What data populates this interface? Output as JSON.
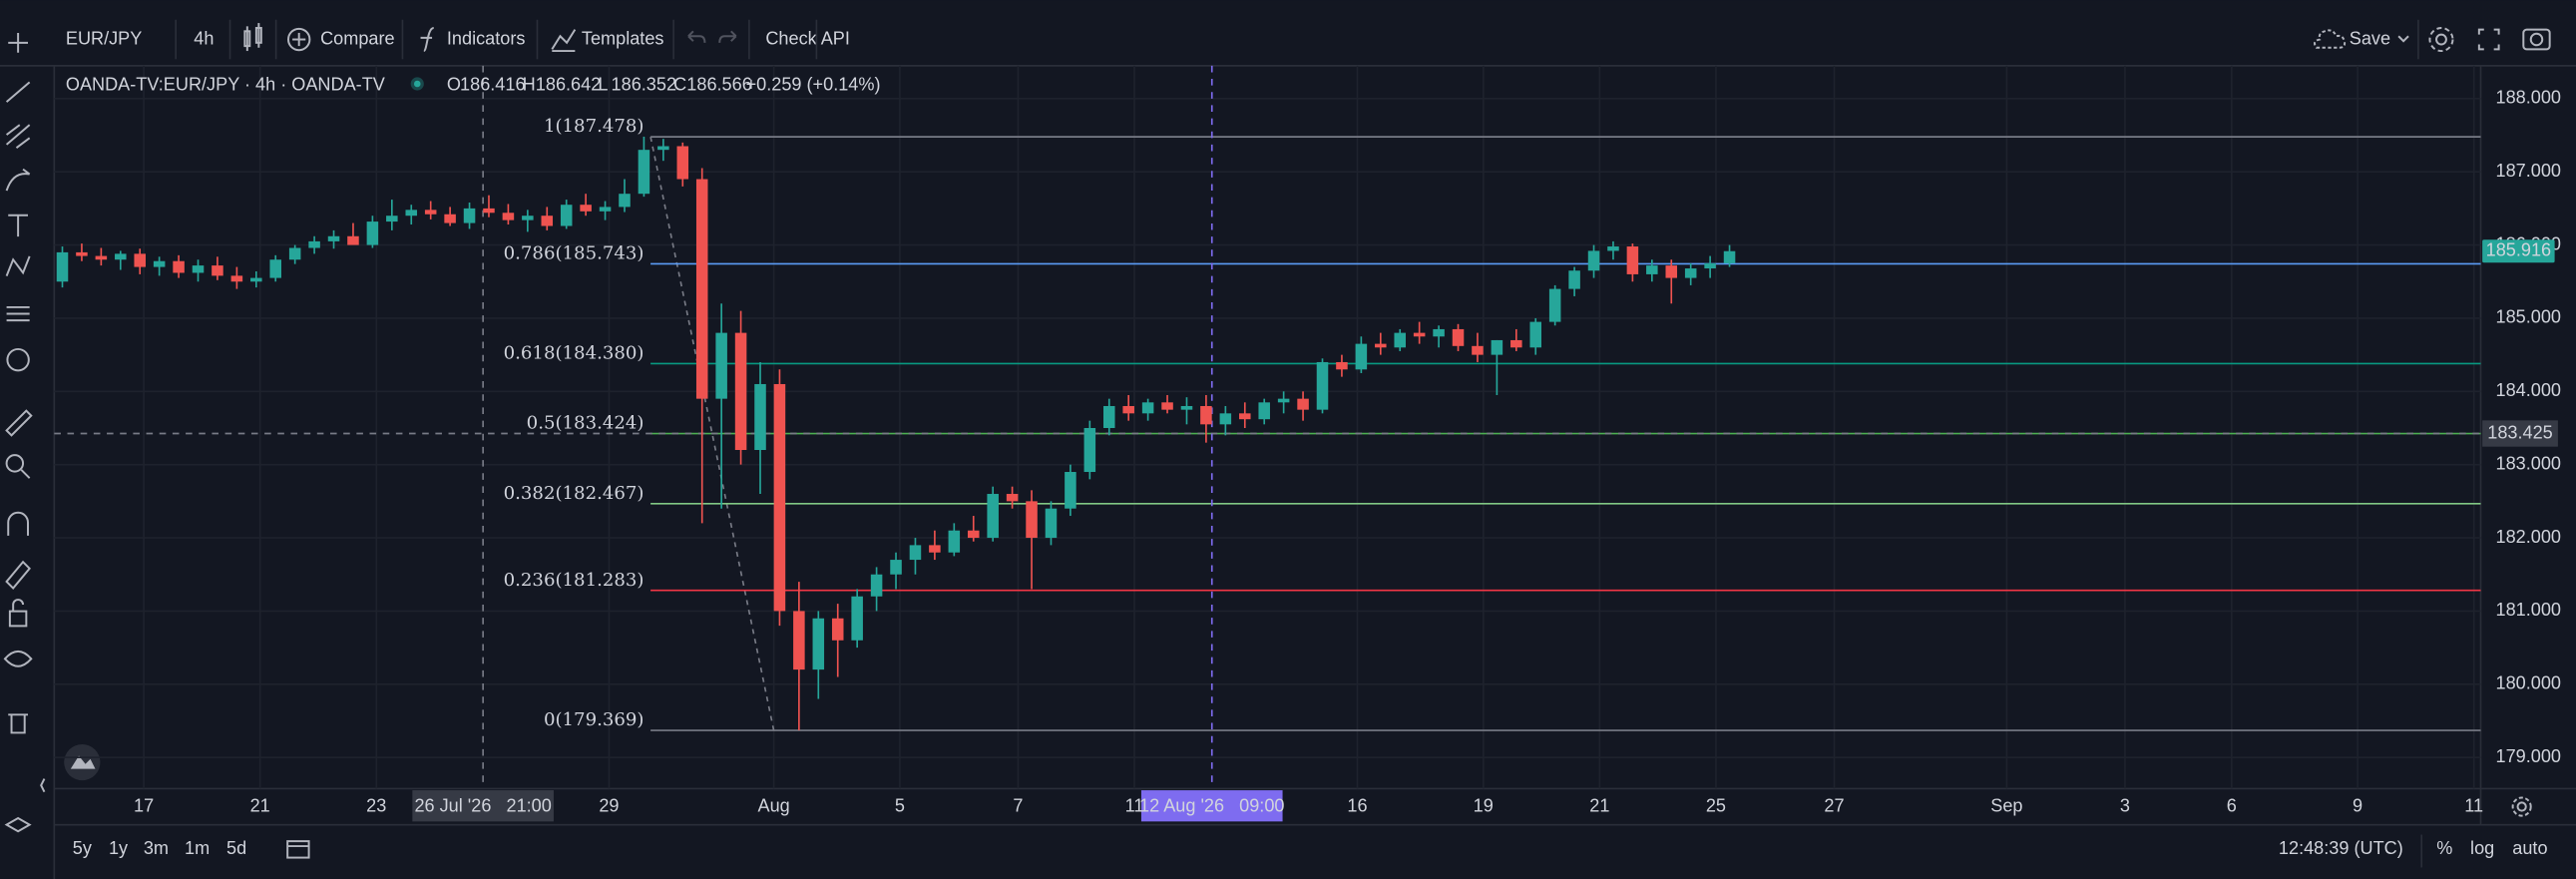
{
  "toolbar": {
    "symbol": "EUR/JPY",
    "interval": "4h",
    "compare": "Compare",
    "indicators": "Indicators",
    "templates": "Templates",
    "check_api": "Check API",
    "save": "Save"
  },
  "legend": {
    "title": "OANDA-TV:EUR/JPY · 4h · OANDA-TV",
    "ohlc": [
      {
        "label": "O",
        "value": 186.416
      },
      {
        "label": "H",
        "value": 186.642
      },
      {
        "label": "L",
        "value": 186.352
      },
      {
        "label": "C",
        "value": 186.566
      }
    ],
    "change": "+0.259 (+0.14%)"
  },
  "chart": {
    "type": "candlestick",
    "colors": {
      "up": "#26a69a",
      "down": "#ef5350"
    },
    "xlim": [
      -0.42,
      124.75
    ],
    "ylim": [
      178.574,
      188.449
    ],
    "yticks": [
      {
        "value": 179,
        "label": "179.000"
      },
      {
        "value": 180,
        "label": "180.000"
      },
      {
        "value": 181,
        "label": "181.000"
      },
      {
        "value": 182,
        "label": "182.000"
      },
      {
        "value": 183,
        "label": "183.000"
      },
      {
        "value": 184,
        "label": "184.000"
      },
      {
        "value": 185,
        "label": "185.000"
      },
      {
        "value": 186,
        "label": "186.000"
      },
      {
        "value": 187,
        "label": "187.000"
      },
      {
        "value": 188,
        "label": "188.000"
      }
    ],
    "xticks": [
      {
        "value": 4.2,
        "label": "17"
      },
      {
        "value": 10.2,
        "label": "21"
      },
      {
        "value": 16.2,
        "label": "23"
      },
      {
        "value": 28.2,
        "label": "29"
      },
      {
        "value": 36.7,
        "label": "Aug"
      },
      {
        "value": 43.2,
        "label": "5"
      },
      {
        "value": 49.3,
        "label": "7"
      },
      {
        "value": 55.3,
        "label": "11"
      },
      {
        "value": 66.8,
        "label": "16"
      },
      {
        "value": 73.3,
        "label": "19"
      },
      {
        "value": 79.3,
        "label": "21"
      },
      {
        "value": 85.3,
        "label": "25"
      },
      {
        "value": 91.4,
        "label": "27"
      },
      {
        "value": 100.3,
        "label": "Sep"
      },
      {
        "value": 106.4,
        "label": "3"
      },
      {
        "value": 111.9,
        "label": "6"
      },
      {
        "value": 118.4,
        "label": "9"
      },
      {
        "value": 124.4,
        "label": "11"
      }
    ],
    "candles": [
      [
        185.5,
        185.98,
        185.42,
        185.9
      ],
      [
        185.9,
        186.02,
        185.78,
        185.85
      ],
      [
        185.85,
        185.96,
        185.72,
        185.8
      ],
      [
        185.8,
        185.92,
        185.66,
        185.88
      ],
      [
        185.88,
        185.95,
        185.6,
        185.7
      ],
      [
        185.7,
        185.84,
        185.58,
        185.78
      ],
      [
        185.78,
        185.86,
        185.55,
        185.62
      ],
      [
        185.62,
        185.8,
        185.5,
        185.72
      ],
      [
        185.72,
        185.84,
        185.52,
        185.58
      ],
      [
        185.58,
        185.7,
        185.4,
        185.5
      ],
      [
        185.5,
        185.64,
        185.42,
        185.55
      ],
      [
        185.55,
        185.86,
        185.5,
        185.8
      ],
      [
        185.8,
        186.0,
        185.74,
        185.96
      ],
      [
        185.96,
        186.12,
        185.88,
        186.05
      ],
      [
        186.05,
        186.2,
        185.95,
        186.12
      ],
      [
        186.12,
        186.3,
        186.02,
        186.0
      ],
      [
        186.0,
        186.4,
        185.96,
        186.32
      ],
      [
        186.32,
        186.62,
        186.2,
        186.4
      ],
      [
        186.4,
        186.55,
        186.28,
        186.48
      ],
      [
        186.48,
        186.6,
        186.35,
        186.42
      ],
      [
        186.42,
        186.52,
        186.26,
        186.3
      ],
      [
        186.3,
        186.58,
        186.22,
        186.5
      ],
      [
        186.5,
        186.68,
        186.38,
        186.44
      ],
      [
        186.44,
        186.56,
        186.28,
        186.34
      ],
      [
        186.34,
        186.48,
        186.18,
        186.4
      ],
      [
        186.4,
        186.52,
        186.2,
        186.26
      ],
      [
        186.26,
        186.62,
        186.22,
        186.55
      ],
      [
        186.55,
        186.7,
        186.4,
        186.46
      ],
      [
        186.46,
        186.6,
        186.34,
        186.52
      ],
      [
        186.52,
        186.9,
        186.45,
        186.7
      ],
      [
        186.7,
        187.48,
        186.66,
        187.3
      ],
      [
        187.3,
        187.45,
        187.15,
        187.35
      ],
      [
        187.35,
        187.4,
        186.8,
        186.9
      ],
      [
        186.9,
        187.05,
        182.2,
        183.9
      ],
      [
        183.9,
        185.2,
        182.4,
        184.8
      ],
      [
        184.8,
        185.1,
        183.0,
        183.2
      ],
      [
        183.2,
        184.4,
        182.6,
        184.1
      ],
      [
        184.1,
        184.3,
        180.8,
        181.0
      ],
      [
        181.0,
        181.4,
        179.37,
        180.2
      ],
      [
        180.2,
        181.0,
        179.8,
        180.9
      ],
      [
        180.9,
        181.1,
        180.1,
        180.6
      ],
      [
        180.6,
        181.3,
        180.5,
        181.2
      ],
      [
        181.2,
        181.6,
        181.0,
        181.5
      ],
      [
        181.5,
        181.8,
        181.3,
        181.7
      ],
      [
        181.7,
        182.0,
        181.5,
        181.9
      ],
      [
        181.9,
        182.1,
        181.7,
        181.8
      ],
      [
        181.8,
        182.2,
        181.75,
        182.1
      ],
      [
        182.1,
        182.3,
        181.95,
        182.0
      ],
      [
        182.0,
        182.7,
        181.95,
        182.6
      ],
      [
        182.6,
        182.7,
        182.4,
        182.5
      ],
      [
        182.5,
        182.65,
        181.3,
        182.0
      ],
      [
        182.0,
        182.5,
        181.9,
        182.4
      ],
      [
        182.4,
        183.0,
        182.3,
        182.9
      ],
      [
        182.9,
        183.6,
        182.8,
        183.5
      ],
      [
        183.5,
        183.9,
        183.4,
        183.8
      ],
      [
        183.8,
        183.95,
        183.6,
        183.7
      ],
      [
        183.7,
        183.9,
        183.6,
        183.85
      ],
      [
        183.85,
        183.95,
        183.7,
        183.75
      ],
      [
        183.75,
        183.92,
        183.55,
        183.8
      ],
      [
        183.8,
        183.95,
        183.3,
        183.55
      ],
      [
        183.55,
        183.8,
        183.4,
        183.7
      ],
      [
        183.7,
        183.85,
        183.5,
        183.62
      ],
      [
        183.62,
        183.9,
        183.55,
        183.85
      ],
      [
        183.85,
        184.0,
        183.7,
        183.9
      ],
      [
        183.9,
        184.0,
        183.6,
        183.75
      ],
      [
        183.75,
        184.45,
        183.7,
        184.4
      ],
      [
        184.4,
        184.5,
        184.2,
        184.3
      ],
      [
        184.3,
        184.75,
        184.25,
        184.65
      ],
      [
        184.65,
        184.8,
        184.5,
        184.6
      ],
      [
        184.6,
        184.85,
        184.55,
        184.8
      ],
      [
        184.8,
        184.95,
        184.65,
        184.75
      ],
      [
        184.75,
        184.9,
        184.6,
        184.85
      ],
      [
        184.85,
        184.92,
        184.55,
        184.62
      ],
      [
        184.62,
        184.8,
        184.4,
        184.5
      ],
      [
        184.5,
        184.7,
        183.95,
        184.7
      ],
      [
        184.7,
        184.85,
        184.55,
        184.6
      ],
      [
        184.6,
        185.0,
        184.5,
        184.95
      ],
      [
        184.95,
        185.45,
        184.9,
        185.4
      ],
      [
        185.4,
        185.7,
        185.3,
        185.65
      ],
      [
        185.65,
        186.0,
        185.55,
        185.92
      ],
      [
        185.92,
        186.05,
        185.8,
        185.98
      ],
      [
        185.98,
        186.02,
        185.5,
        185.6
      ],
      [
        185.6,
        185.8,
        185.5,
        185.72
      ],
      [
        185.72,
        185.8,
        185.2,
        185.55
      ],
      [
        185.55,
        185.75,
        185.45,
        185.68
      ],
      [
        185.68,
        185.85,
        185.55,
        185.75
      ],
      [
        185.75,
        186.0,
        185.7,
        185.916
      ]
    ],
    "fib": [
      {
        "label": "1(187.478)",
        "value": 187.478,
        "color": "#787b86"
      },
      {
        "label": "0.786(185.743)",
        "value": 185.743,
        "color": "#5b9cf6"
      },
      {
        "label": "0.618(184.380)",
        "value": 184.38,
        "color": "#089981"
      },
      {
        "label": "0.5(183.424)",
        "value": 183.424,
        "color": "#4caf50"
      },
      {
        "label": "0.382(182.467)",
        "value": 182.467,
        "color": "#81c784"
      },
      {
        "label": "0.236(181.283)",
        "value": 181.283,
        "color": "#f23645"
      },
      {
        "label": "0(179.369)",
        "value": 179.369,
        "color": "#787b86"
      }
    ],
    "last_price": {
      "value": 185.916,
      "label": "185.916"
    },
    "crosshair": {
      "price": {
        "value": 183.425,
        "label": "183.425"
      },
      "times": [
        {
          "value": 21.7,
          "label": "26 Jul '26   21:00"
        },
        {
          "value": 59.3,
          "label": "12 Aug '26   09:00"
        }
      ]
    }
  },
  "bottom_bar": {
    "ranges": [
      "5y",
      "1y",
      "3m",
      "1m",
      "5d"
    ],
    "clock": "12:48:39 (UTC)",
    "scale_options": [
      "%",
      "log",
      "auto"
    ]
  }
}
